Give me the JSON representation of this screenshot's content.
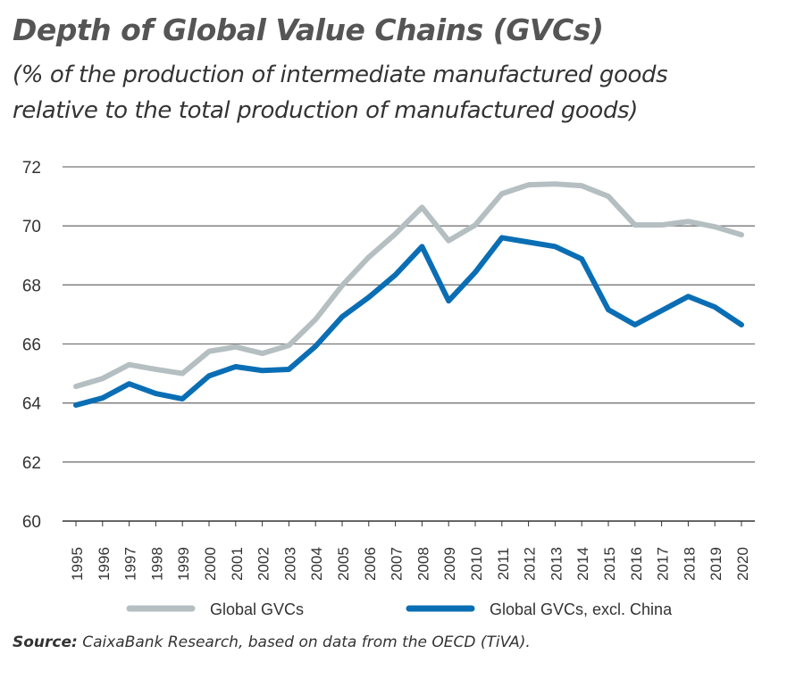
{
  "chart_data": {
    "type": "line",
    "title": "Depth of Global Value Chains (GVCs)",
    "subtitle_lines": [
      "(% of the production of intermediate manufactured goods",
      "relative to the total production of manufactured goods)"
    ],
    "xlabel": "",
    "ylabel": "",
    "ylim": [
      60,
      72
    ],
    "yticks": [
      60,
      62,
      64,
      66,
      68,
      70,
      72
    ],
    "grid": true,
    "legend_position": "bottom",
    "x": [
      1995,
      1996,
      1997,
      1998,
      1999,
      2000,
      2001,
      2002,
      2003,
      2004,
      2005,
      2006,
      2007,
      2008,
      2009,
      2010,
      2011,
      2012,
      2013,
      2014,
      2015,
      2016,
      2017,
      2018,
      2019,
      2020
    ],
    "series": [
      {
        "name": "Global GVCs",
        "color": "#b5bfc2",
        "values": [
          64.56,
          64.83,
          65.3,
          65.14,
          65.0,
          65.75,
          65.9,
          65.68,
          65.95,
          66.83,
          67.98,
          68.94,
          69.73,
          70.63,
          69.5,
          70.03,
          71.09,
          71.39,
          71.42,
          71.36,
          71.0,
          70.03,
          70.03,
          70.15,
          69.97,
          69.7
        ]
      },
      {
        "name": "Global GVCs, excl. China",
        "color": "#0a6eb4",
        "values": [
          63.93,
          64.17,
          64.65,
          64.32,
          64.14,
          64.92,
          65.23,
          65.1,
          65.14,
          65.92,
          66.92,
          67.58,
          68.34,
          69.3,
          67.46,
          68.43,
          69.6,
          69.45,
          69.3,
          68.88,
          67.16,
          66.65,
          67.13,
          67.61,
          67.25,
          66.65
        ]
      }
    ]
  },
  "source": {
    "label": "Source:",
    "text": " CaixaBank Research, based on data from the OECD (TiVA)."
  }
}
